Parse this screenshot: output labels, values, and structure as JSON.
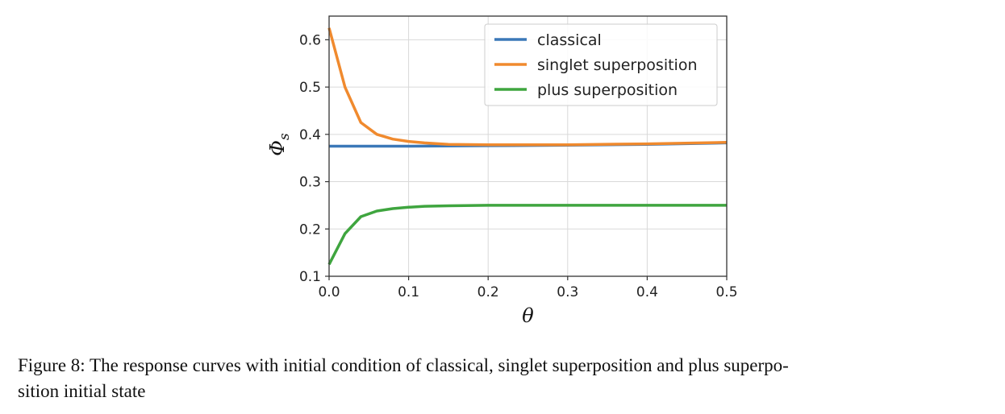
{
  "chart_data": {
    "type": "line",
    "xlabel": "θ",
    "ylabel": "Φ",
    "ylabel_sub": "s",
    "xlim": [
      0.0,
      0.5
    ],
    "ylim": [
      0.1,
      0.65
    ],
    "x_ticks": [
      0.0,
      0.1,
      0.2,
      0.3,
      0.4,
      0.5
    ],
    "x_tick_labels": [
      "0.0",
      "0.1",
      "0.2",
      "0.3",
      "0.4",
      "0.5"
    ],
    "y_ticks": [
      0.1,
      0.2,
      0.3,
      0.4,
      0.5,
      0.6
    ],
    "y_tick_labels": [
      "0.1",
      "0.2",
      "0.3",
      "0.4",
      "0.5",
      "0.6"
    ],
    "grid": true,
    "legend_position": "top-right",
    "series": [
      {
        "name": "classical",
        "color": "#3b78b8",
        "x": [
          0.0,
          0.1,
          0.2,
          0.3,
          0.4,
          0.5
        ],
        "y": [
          0.375,
          0.375,
          0.376,
          0.377,
          0.379,
          0.382
        ]
      },
      {
        "name": "singlet superposition",
        "color": "#f08a2e",
        "x": [
          0.0,
          0.02,
          0.04,
          0.06,
          0.08,
          0.1,
          0.12,
          0.15,
          0.2,
          0.3,
          0.4,
          0.5
        ],
        "y": [
          0.625,
          0.5,
          0.425,
          0.4,
          0.39,
          0.385,
          0.382,
          0.379,
          0.378,
          0.378,
          0.38,
          0.383
        ]
      },
      {
        "name": "plus superposition",
        "color": "#3fa53f",
        "x": [
          0.0,
          0.02,
          0.04,
          0.06,
          0.08,
          0.1,
          0.12,
          0.15,
          0.2,
          0.3,
          0.4,
          0.5
        ],
        "y": [
          0.125,
          0.19,
          0.226,
          0.238,
          0.243,
          0.246,
          0.248,
          0.249,
          0.25,
          0.25,
          0.25,
          0.25
        ]
      }
    ]
  },
  "caption": {
    "line1": "Figure 8: The response curves with initial condition of classical, singlet superposition and plus superpo-",
    "line2": "sition initial state"
  }
}
